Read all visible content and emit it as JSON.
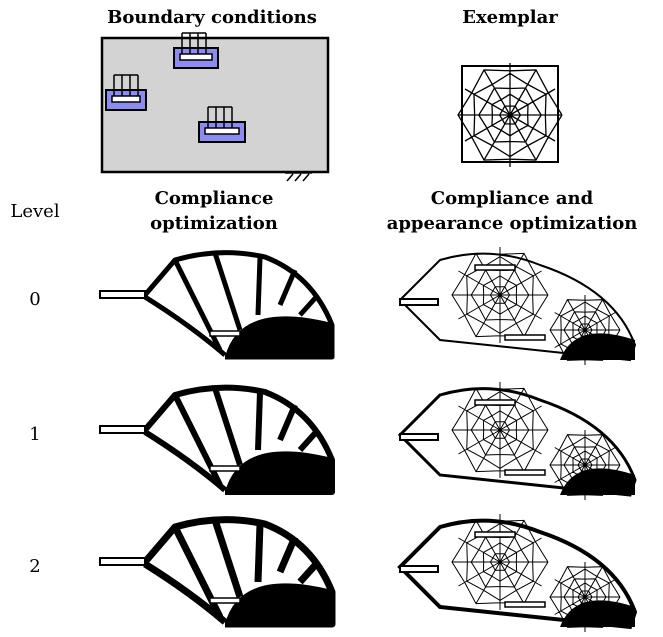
{
  "headers": {
    "boundary": "Boundary conditions",
    "exemplar": "Exemplar"
  },
  "columns": {
    "level": "Level",
    "compliance": [
      "Compliance",
      "optimization"
    ],
    "appearance": [
      "Compliance and",
      "appearance optimization"
    ]
  },
  "levels": [
    "0",
    "1",
    "2"
  ]
}
